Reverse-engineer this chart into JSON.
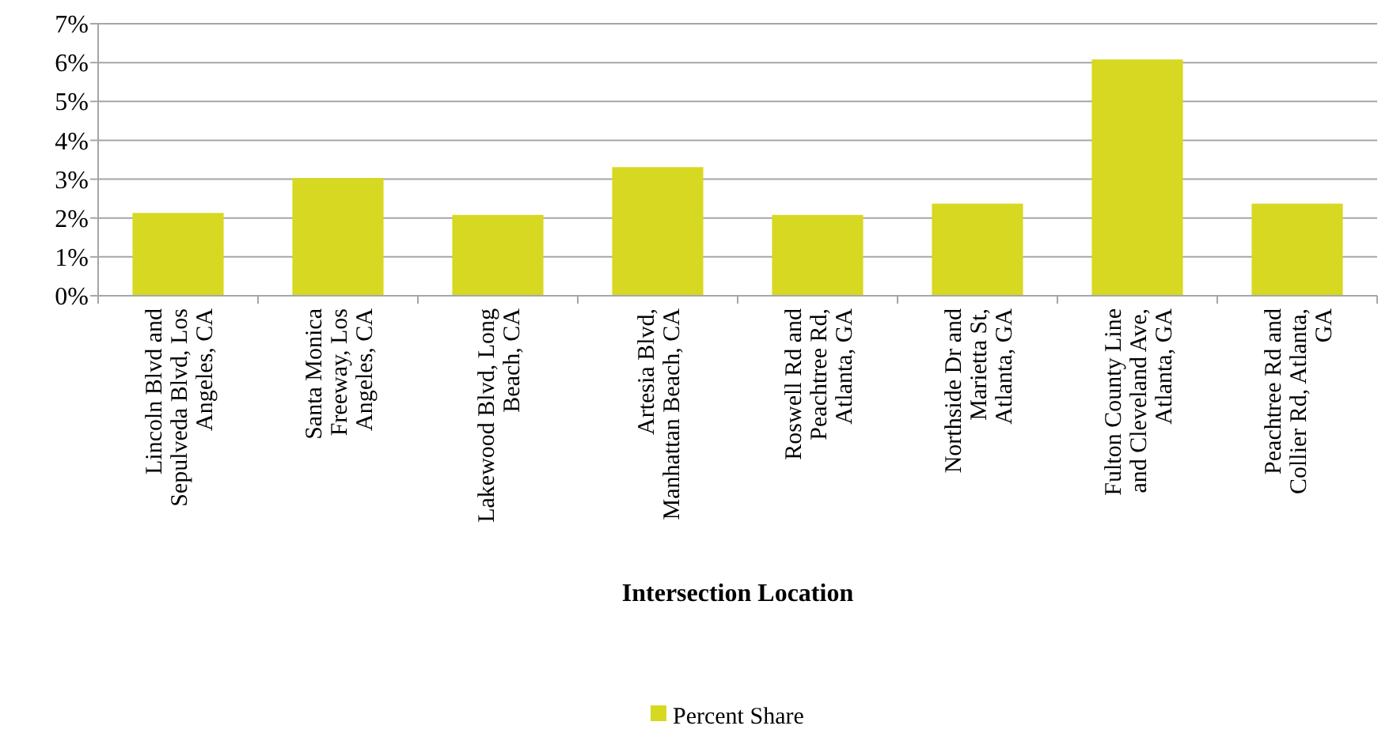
{
  "chart_data": {
    "type": "bar",
    "xlabel": "Intersection Location",
    "categories": [
      "Lincoln Blvd and Sepulveda Blvd, Los Angeles, CA",
      "Santa Monica Freeway, Los Angeles, CA",
      "Lakewood Blvd, Long Beach, CA",
      "Artesia Blvd, Manhattan Beach, CA",
      "Roswell Rd and Peachtree Rd, Atlanta, GA",
      "Northside Dr and Marietta St, Atlanta, GA",
      "Fulton County Line and Cleveland Ave, Atlanta, GA",
      "Peachtree Rd and Collier Rd, Atlanta, GA"
    ],
    "series": [
      {
        "name": "Percent Share",
        "color": "#d7d821",
        "values": [
          2.13,
          3.03,
          2.08,
          3.31,
          2.08,
          2.37,
          6.08,
          2.37
        ]
      }
    ],
    "ylim": [
      0,
      7
    ],
    "yticks": [
      {
        "value": 0,
        "label": "0%"
      },
      {
        "value": 1,
        "label": "1%"
      },
      {
        "value": 2,
        "label": "2%"
      },
      {
        "value": 3,
        "label": "3%"
      },
      {
        "value": 4,
        "label": "4%"
      },
      {
        "value": 5,
        "label": "5%"
      },
      {
        "value": 6,
        "label": "6%"
      },
      {
        "value": 7,
        "label": "7%"
      }
    ],
    "grid": "y",
    "legend": "bottom"
  }
}
